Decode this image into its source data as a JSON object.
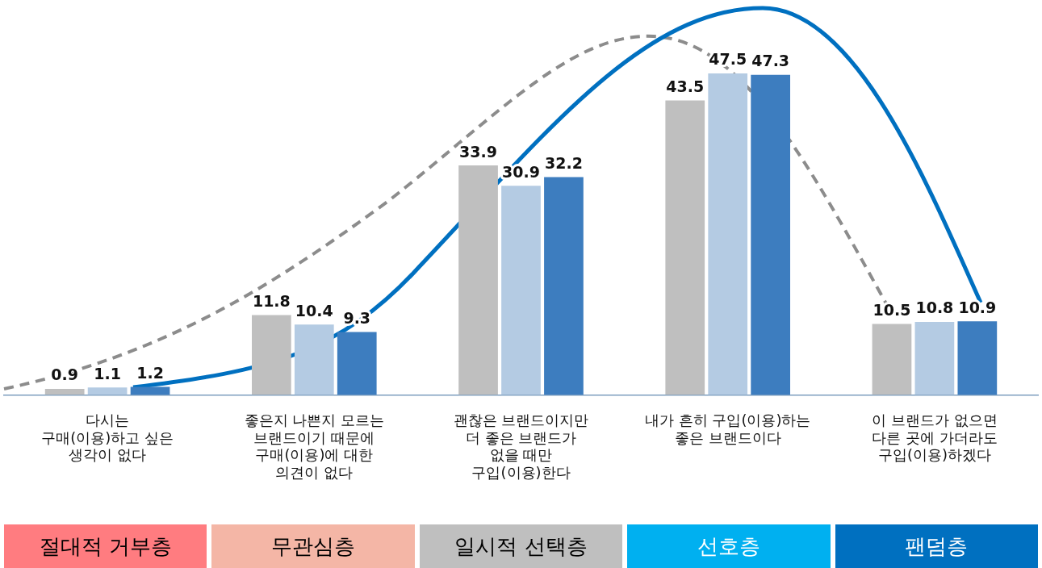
{
  "chart_data": {
    "type": "bar",
    "categories": [
      "다시는\n구매(이용)하고 싶은\n생각이 없다",
      "좋은지 나쁜지 모르는\n브랜드이기 때문에\n구매(이용)에 대한\n의견이 없다",
      "괜찮은 브랜드이지만\n더 좋은 브랜드가\n없을 때만\n구입(이용)한다",
      "내가 흔히 구입(이용)하는\n좋은 브랜드이다",
      "이 브랜드가 없으면\n다른 곳에 가더라도\n구입(이용)하겠다"
    ],
    "series": [
      {
        "color": "#bfbfbf",
        "values": [
          0.9,
          11.8,
          33.9,
          43.5,
          10.5
        ]
      },
      {
        "color": "#b4cbe3",
        "values": [
          1.1,
          10.4,
          30.9,
          47.5,
          10.8
        ]
      },
      {
        "color": "#3d7dbf",
        "values": [
          1.2,
          9.3,
          32.2,
          47.3,
          10.9
        ]
      }
    ],
    "tick_labels": "x",
    "data_labels": true,
    "annotations": [
      "절대적 거부층",
      "무관심층",
      "일시적 선택층",
      "선호층",
      "팬덤층"
    ]
  }
}
